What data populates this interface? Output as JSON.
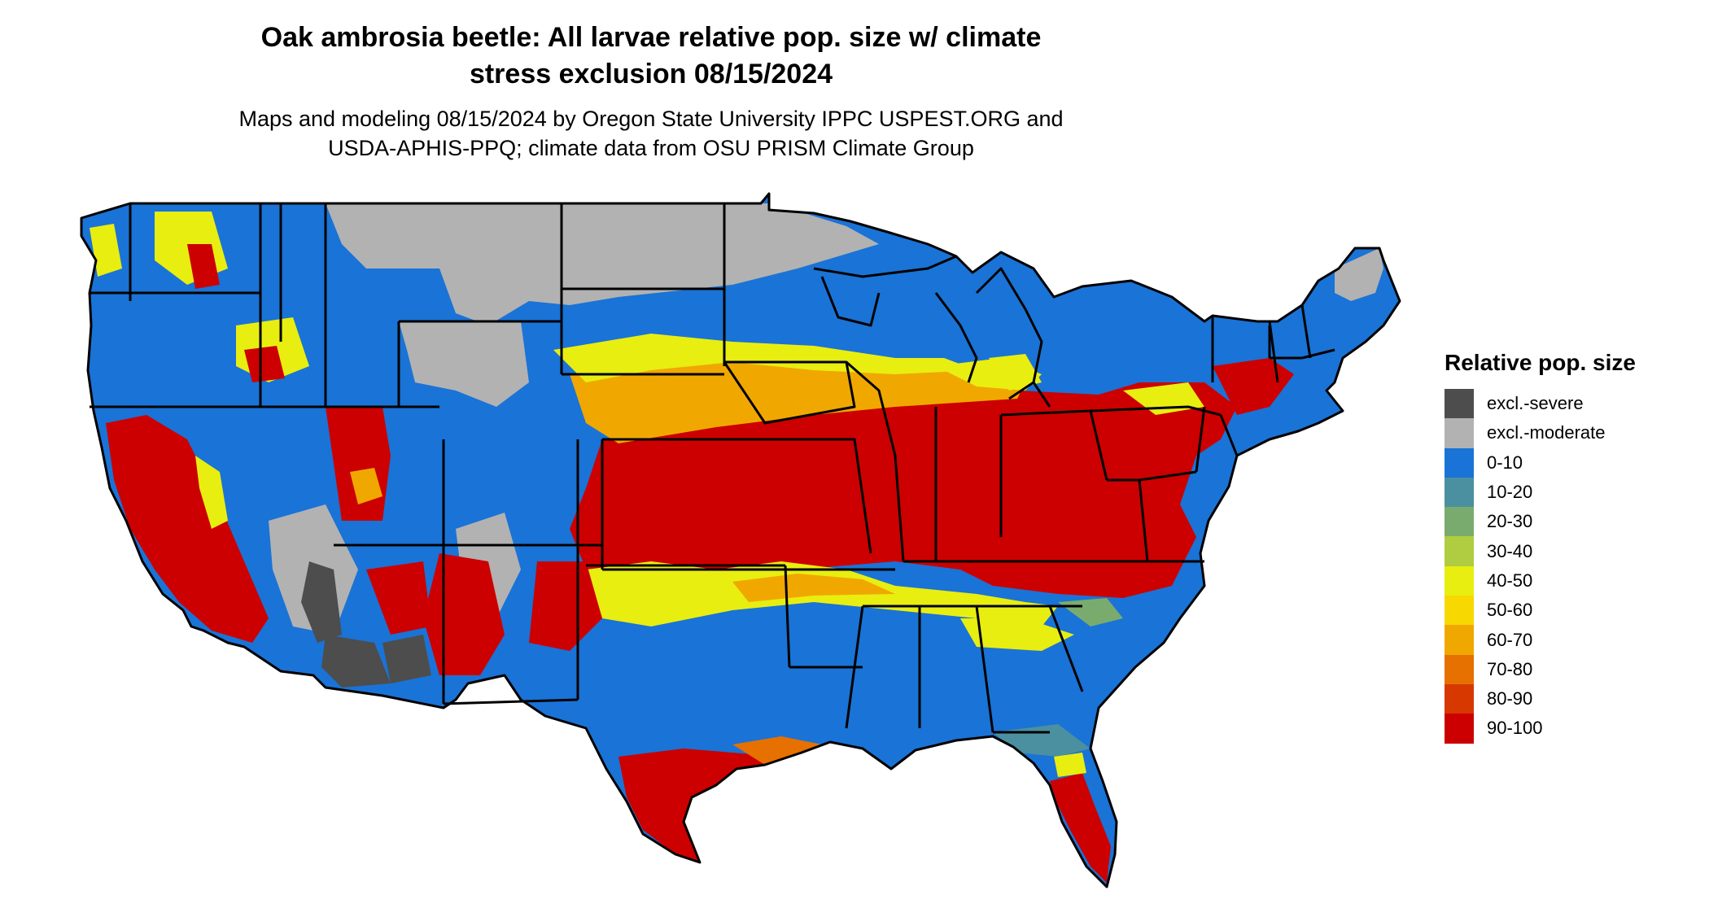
{
  "title": {
    "line1": "Oak ambrosia beetle: All larvae relative pop. size w/ climate",
    "line2": "stress exclusion 08/15/2024"
  },
  "subtitle": {
    "line1": "Maps and modeling 08/15/2024 by Oregon State University IPPC USPEST.ORG and",
    "line2": "USDA-APHIS-PPQ; climate data from OSU PRISM Climate Group"
  },
  "legend": {
    "title": "Relative pop. size",
    "items": [
      {
        "label": "excl.-severe",
        "color": "#4d4d4d"
      },
      {
        "label": "excl.-moderate",
        "color": "#b2b2b2"
      },
      {
        "label": "0-10",
        "color": "#1a73d6"
      },
      {
        "label": "10-20",
        "color": "#4a90a0"
      },
      {
        "label": "20-30",
        "color": "#7aab6e"
      },
      {
        "label": "30-40",
        "color": "#b0cc40"
      },
      {
        "label": "40-50",
        "color": "#e8ee10"
      },
      {
        "label": "50-60",
        "color": "#f7d800"
      },
      {
        "label": "60-70",
        "color": "#f0a800"
      },
      {
        "label": "70-80",
        "color": "#e67000"
      },
      {
        "label": "80-90",
        "color": "#d63800"
      },
      {
        "label": "90-100",
        "color": "#cc0000"
      }
    ]
  }
}
